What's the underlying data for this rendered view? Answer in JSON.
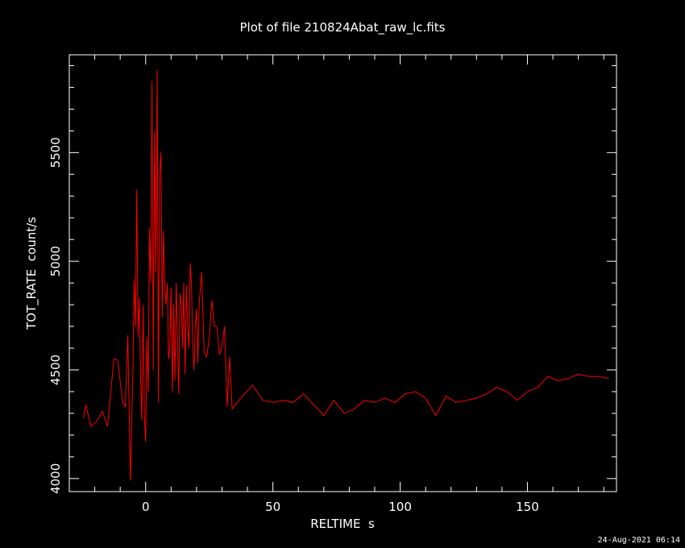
{
  "chart_data": {
    "type": "line",
    "title": "Plot of file 210824Abat_raw_lc.fits",
    "xlabel": "RELTIME  s",
    "ylabel": "TOT_RATE  count/s",
    "xlim": [
      -30,
      185
    ],
    "ylim": [
      3940,
      5950
    ],
    "x_ticks": [
      0,
      50,
      100,
      150
    ],
    "y_ticks": [
      4000,
      4500,
      5000,
      5500
    ],
    "grid": false,
    "line_color": "#ff0000",
    "series": [
      {
        "x": [
          -24.5,
          -23.5,
          -21.5,
          -19.5,
          -17,
          -15,
          -12.5,
          -11,
          -9,
          -8,
          -7,
          -6,
          -5.5,
          -5,
          -4.5,
          -4,
          -3.5,
          -3,
          -2.5,
          -2,
          -1.5,
          -1,
          -0.5,
          0,
          0.5,
          1,
          1.5,
          2,
          2.5,
          3,
          3.5,
          4,
          4.5,
          5,
          5.5,
          6,
          6.5,
          7,
          7.5,
          8,
          8.5,
          9,
          9.5,
          10,
          10.5,
          11,
          11.5,
          12,
          12.5,
          13,
          13.5,
          14,
          14.5,
          15,
          15.5,
          16,
          16.5,
          17,
          17.5,
          18,
          18.5,
          19,
          19.5,
          20,
          20.5,
          21,
          22,
          23,
          24,
          25,
          26,
          27,
          28,
          29,
          30,
          31,
          32,
          33,
          34,
          38,
          42,
          46,
          50,
          54,
          58,
          62,
          66,
          70,
          74,
          78,
          82,
          86,
          90,
          94,
          98,
          102,
          106,
          110,
          114,
          118,
          122,
          126,
          130,
          134,
          138,
          142,
          146,
          150,
          154,
          158,
          162,
          166,
          170,
          174,
          178,
          182
        ],
        "y": [
          4280,
          4340,
          4240,
          4260,
          4310,
          4240,
          4550,
          4545,
          4350,
          4330,
          4660,
          3990,
          4260,
          4500,
          4920,
          4700,
          5330,
          4650,
          4830,
          4470,
          4270,
          4800,
          4280,
          4170,
          4650,
          4400,
          5150,
          4900,
          5830,
          4500,
          5600,
          4950,
          5880,
          4350,
          5400,
          5500,
          4740,
          5140,
          4890,
          4800,
          4900,
          4550,
          4600,
          4880,
          4400,
          4800,
          4450,
          4900,
          4650,
          4390,
          4850,
          4800,
          4600,
          4900,
          4480,
          4890,
          4700,
          4600,
          4990,
          4900,
          4600,
          4500,
          4700,
          4780,
          4530,
          4800,
          4950,
          4580,
          4560,
          4650,
          4820,
          4700,
          4700,
          4570,
          4610,
          4700,
          4330,
          4560,
          4320,
          4380,
          4430,
          4360,
          4350,
          4360,
          4350,
          4390,
          4340,
          4290,
          4360,
          4300,
          4320,
          4360,
          4350,
          4370,
          4350,
          4390,
          4400,
          4370,
          4290,
          4380,
          4350,
          4360,
          4370,
          4390,
          4420,
          4400,
          4360,
          4400,
          4420,
          4470,
          4450,
          4460,
          4480,
          4470,
          4470,
          4460
        ]
      }
    ],
    "timestamp": "24-Aug-2021 06:14"
  }
}
